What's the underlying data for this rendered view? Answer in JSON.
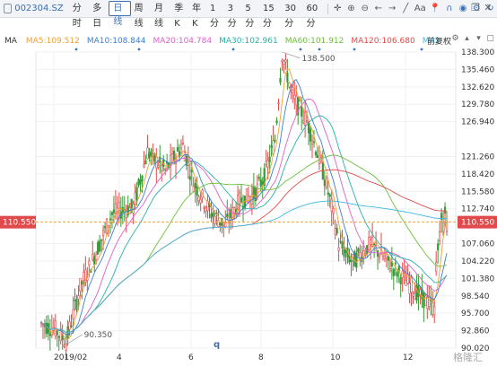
{
  "toolbar": {
    "symbol": "002304.SZ",
    "periods": [
      "分时",
      "多日",
      "日线",
      "周线",
      "月线",
      "季K",
      "年K",
      "1分",
      "3分",
      "5分",
      "15分",
      "30分",
      "60分"
    ],
    "active_period": "日线",
    "tool_text_aa": "Aa"
  },
  "ma_bar": {
    "label": "MA",
    "items": [
      {
        "name": "MA5",
        "value": "109.512",
        "color": "#f0a030"
      },
      {
        "name": "MA10",
        "value": "108.844",
        "color": "#3a7fd5"
      },
      {
        "name": "MA20",
        "value": "104.784",
        "color": "#e060c8"
      },
      {
        "name": "MA30",
        "value": "102.961",
        "color": "#2bb0a8"
      },
      {
        "name": "MA60",
        "value": "101.912",
        "color": "#6cbf3a"
      },
      {
        "name": "MA120",
        "value": "106.680",
        "color": "#e04a4a"
      },
      {
        "name": "MA2",
        "value": "",
        "color": "#40b8e0"
      }
    ],
    "fuquan": "前复权"
  },
  "chart_data": {
    "type": "candlestick",
    "y_ticks": [
      "138.300",
      "135.460",
      "132.620",
      "129.780",
      "126.940",
      "121.260",
      "118.420",
      "115.580",
      "112.740",
      "107.060",
      "104.220",
      "101.380",
      "98.540",
      "95.700",
      "92.860",
      "90.020"
    ],
    "ylim": [
      90.02,
      138.3
    ],
    "x_ticks": [
      "2019/02",
      "4",
      "6",
      "8",
      "10",
      "12"
    ],
    "current_price": "110.550",
    "high_label": "138.500",
    "low_label": "90.350",
    "marker_label": "q",
    "watermark": "格隆汇",
    "colors": {
      "up": "#e04a4a",
      "down": "#3a9a3a",
      "price_line": "#f0a030",
      "tag_bg": "#e04a4a"
    }
  }
}
